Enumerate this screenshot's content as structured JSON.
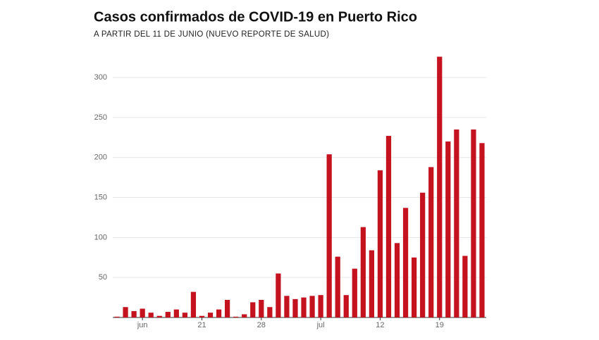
{
  "chart_data": {
    "type": "bar",
    "title": "Casos confirmados de COVID-19 en Puerto Rico",
    "subtitle": "A PARTIR DEL 11 DE JUNIO (NUEVO REPORTE DE SALUD)",
    "categories": [
      null,
      null,
      null,
      "jun",
      null,
      null,
      null,
      null,
      null,
      null,
      "21",
      null,
      null,
      null,
      null,
      null,
      null,
      "28",
      null,
      null,
      null,
      null,
      null,
      null,
      "jul",
      null,
      null,
      null,
      null,
      null,
      null,
      "12",
      null,
      null,
      null,
      null,
      null,
      null,
      "19",
      null,
      null,
      null,
      null,
      null
    ],
    "values": [
      1,
      13,
      8,
      11,
      6,
      2,
      7,
      10,
      6,
      32,
      2,
      6,
      10,
      22,
      1,
      4,
      19,
      22,
      13,
      55,
      27,
      23,
      25,
      27,
      28,
      204,
      76,
      28,
      61,
      113,
      84,
      184,
      227,
      93,
      137,
      75,
      156,
      188,
      326,
      220,
      235,
      77,
      235,
      218
    ],
    "color": "#c4121f",
    "ylim": [
      0,
      330
    ],
    "yticks": [
      50,
      100,
      150,
      200,
      250,
      300
    ],
    "grid": true
  }
}
